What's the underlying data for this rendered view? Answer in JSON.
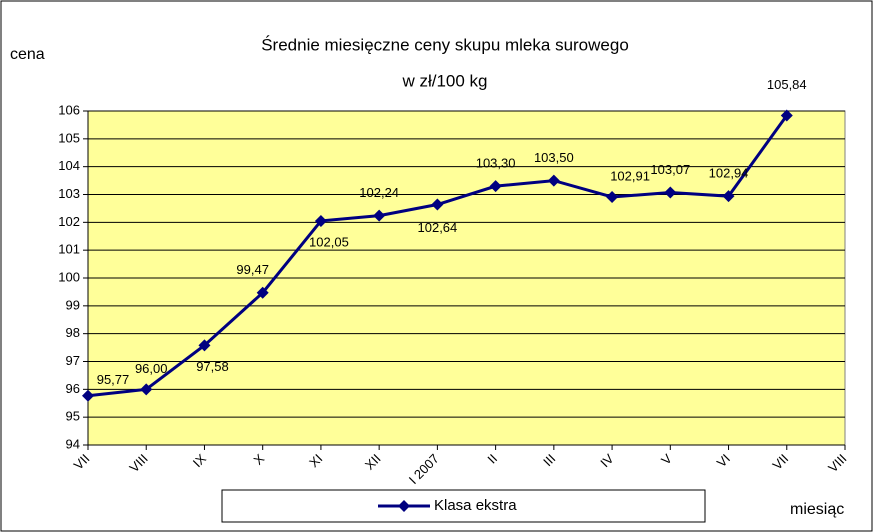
{
  "chart_data": {
    "type": "line",
    "title": "Średnie miesięczne ceny skupu mleka surowego",
    "subtitle": "w zł/100 kg",
    "y_label": "cena",
    "x_label": "miesiąc",
    "categories": [
      "VII",
      "VIII",
      "IX",
      "X",
      "XI",
      "XII",
      "I 2007",
      "II",
      "III",
      "IV",
      "V",
      "VI",
      "VII",
      "VIII"
    ],
    "series": [
      {
        "name": "Klasa ekstra",
        "color": "#000080",
        "values": [
          95.77,
          96.0,
          97.58,
          99.47,
          102.05,
          102.24,
          102.64,
          103.3,
          103.5,
          102.91,
          103.07,
          102.94,
          105.84,
          null
        ],
        "value_labels": [
          "95,77",
          "96,00",
          "97,58",
          "99,47",
          "102,05",
          "102,24",
          "102,64",
          "103,30",
          "103,50",
          "102,91",
          "103,07",
          "102,94",
          "105,84",
          null
        ]
      }
    ],
    "ylim": [
      94,
      106
    ],
    "yticks": [
      94,
      95,
      96,
      97,
      98,
      99,
      100,
      101,
      102,
      103,
      104,
      105,
      106
    ],
    "grid": true,
    "background": "#ffff99"
  }
}
